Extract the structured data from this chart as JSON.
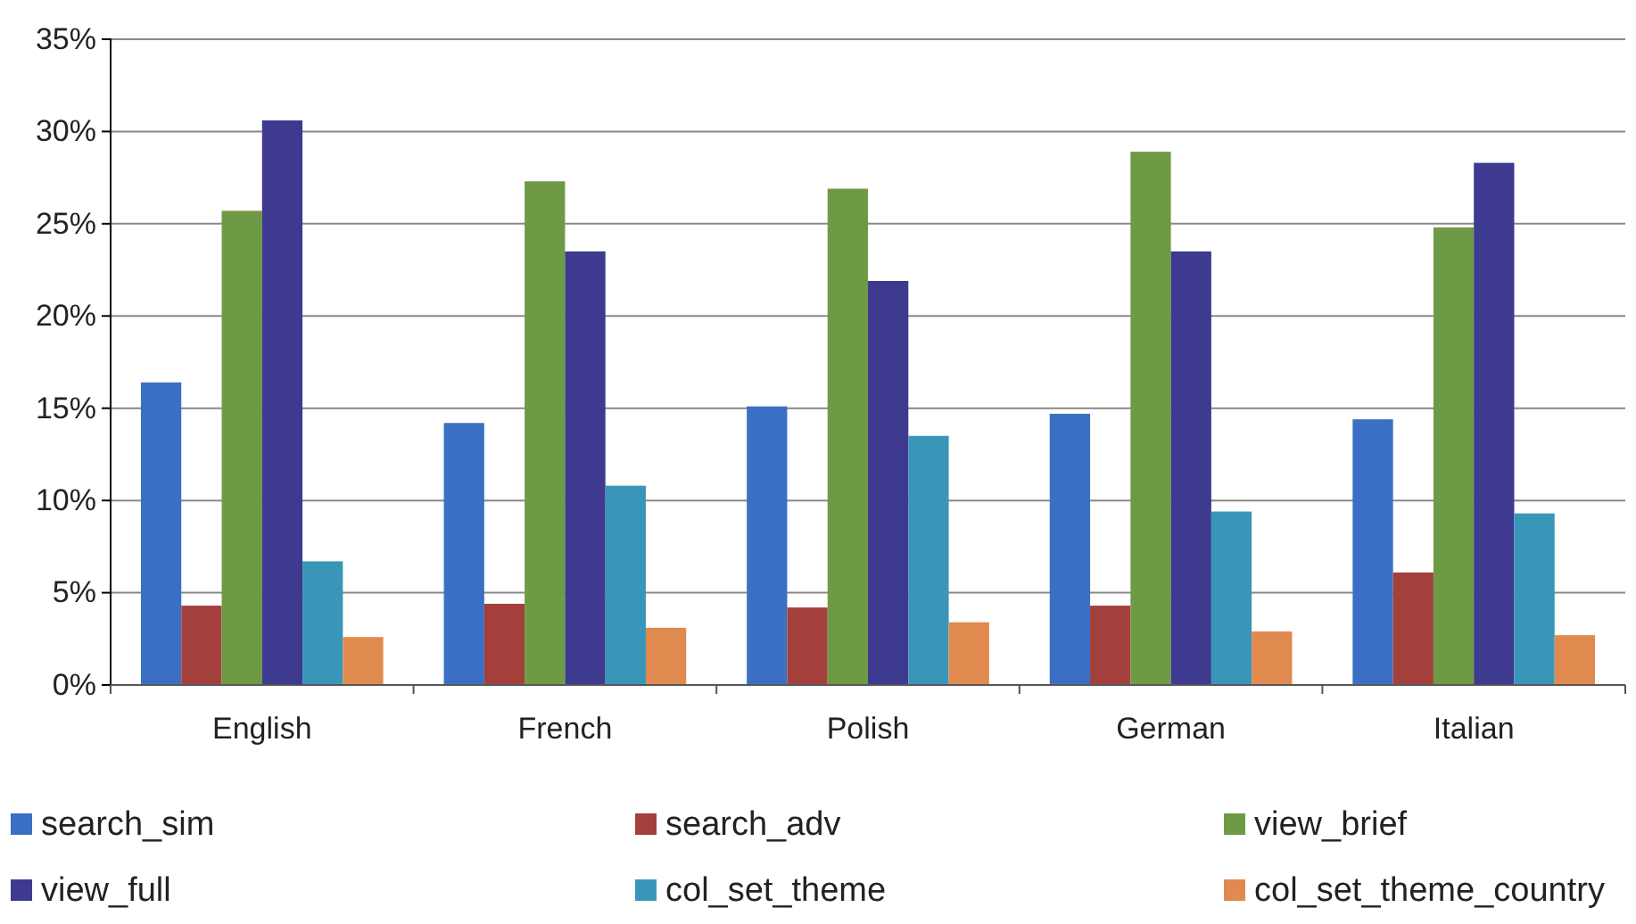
{
  "chart_data": {
    "type": "bar",
    "categories": [
      "English",
      "French",
      "Polish",
      "German",
      "Italian"
    ],
    "series": [
      {
        "name": "search_sim",
        "color": "#3a6fc4",
        "values": [
          16.4,
          14.2,
          15.1,
          14.7,
          14.4
        ]
      },
      {
        "name": "search_adv",
        "color": "#a4403b",
        "values": [
          4.3,
          4.4,
          4.2,
          4.3,
          6.1
        ]
      },
      {
        "name": "view_brief",
        "color": "#6f9a45",
        "values": [
          25.7,
          27.3,
          26.9,
          28.9,
          24.8
        ]
      },
      {
        "name": "view_full",
        "color": "#3d3a8f",
        "values": [
          30.6,
          23.5,
          21.9,
          23.5,
          28.3
        ]
      },
      {
        "name": "col_set_theme",
        "color": "#3a96b8",
        "values": [
          6.7,
          10.8,
          13.5,
          9.4,
          9.3
        ]
      },
      {
        "name": "col_set_theme_country",
        "color": "#e08a50",
        "values": [
          2.6,
          3.1,
          3.4,
          2.9,
          2.7
        ]
      }
    ],
    "ylim": [
      0,
      35
    ],
    "yticks": [
      {
        "value": 0,
        "label": "0%"
      },
      {
        "value": 5,
        "label": "5%"
      },
      {
        "value": 10,
        "label": "10%"
      },
      {
        "value": 15,
        "label": "15%"
      },
      {
        "value": 20,
        "label": "20%"
      },
      {
        "value": 25,
        "label": "25%"
      },
      {
        "value": 30,
        "label": "30%"
      },
      {
        "value": 35,
        "label": "35%"
      }
    ],
    "grid": "y",
    "legend": "bottom"
  }
}
